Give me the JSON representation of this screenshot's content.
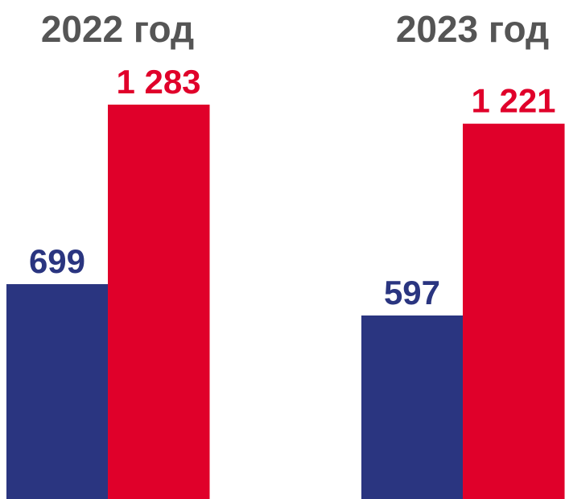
{
  "chart_data": {
    "type": "bar",
    "categories": [
      "2022 год",
      "2023 год"
    ],
    "series": [
      {
        "color": "#2a3580",
        "values": [
          699,
          597
        ],
        "value_labels": [
          "699",
          "597"
        ]
      },
      {
        "color": "#e0002a",
        "values": [
          1283,
          1221
        ],
        "value_labels": [
          "1 283",
          "1 221"
        ]
      }
    ]
  }
}
